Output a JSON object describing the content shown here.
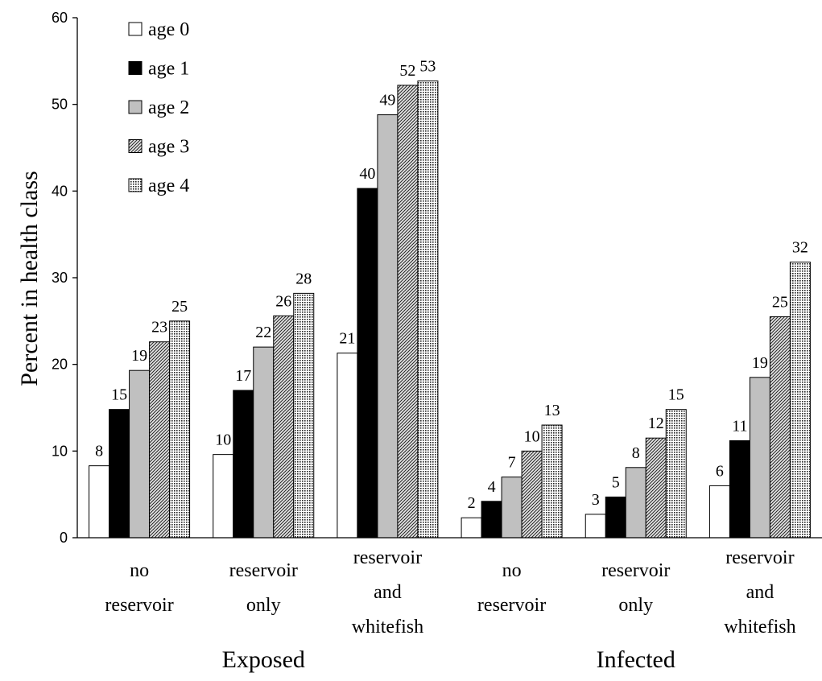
{
  "chart_data": {
    "type": "bar",
    "ylabel": "Percent in health class",
    "xlabel": "",
    "ylim": [
      0,
      60
    ],
    "yticks": [
      "0",
      "10",
      "20",
      "30",
      "40",
      "50",
      "60"
    ],
    "grid": false,
    "legend_position": "top-left",
    "groups": [
      {
        "label": "Exposed",
        "category_indices": [
          0,
          1,
          2
        ]
      },
      {
        "label": "Infected",
        "category_indices": [
          3,
          4,
          5
        ]
      }
    ],
    "categories": [
      [
        "no",
        "reservoir"
      ],
      [
        "reservoir",
        "only"
      ],
      [
        "reservoir",
        "and",
        "whitefish"
      ],
      [
        "no",
        "reservoir"
      ],
      [
        "reservoir",
        "only"
      ],
      [
        "reservoir",
        "and",
        "whitefish"
      ]
    ],
    "series": [
      {
        "name": "age 0",
        "fill": "white",
        "values": [
          8.3,
          9.6,
          21.3,
          2.3,
          2.7,
          6.0
        ],
        "labels": [
          "8",
          "10",
          "21",
          "2",
          "3",
          "6"
        ]
      },
      {
        "name": "age 1",
        "fill": "black",
        "values": [
          14.8,
          17.0,
          40.3,
          4.2,
          4.7,
          11.2
        ],
        "labels": [
          "15",
          "17",
          "40",
          "4",
          "5",
          "11"
        ]
      },
      {
        "name": "age 2",
        "fill": "gray",
        "values": [
          19.3,
          22.0,
          48.8,
          7.0,
          8.1,
          18.5
        ],
        "labels": [
          "19",
          "22",
          "49",
          "7",
          "8",
          "19"
        ]
      },
      {
        "name": "age 3",
        "fill": "diagonal-hatch",
        "values": [
          22.6,
          25.6,
          52.2,
          10.0,
          11.5,
          25.5
        ],
        "labels": [
          "23",
          "26",
          "52",
          "10",
          "12",
          "25"
        ]
      },
      {
        "name": "age 4",
        "fill": "dotted",
        "values": [
          25.0,
          28.2,
          52.7,
          13.0,
          14.8,
          31.8
        ],
        "labels": [
          "25",
          "28",
          "53",
          "13",
          "15",
          "32"
        ]
      }
    ]
  }
}
